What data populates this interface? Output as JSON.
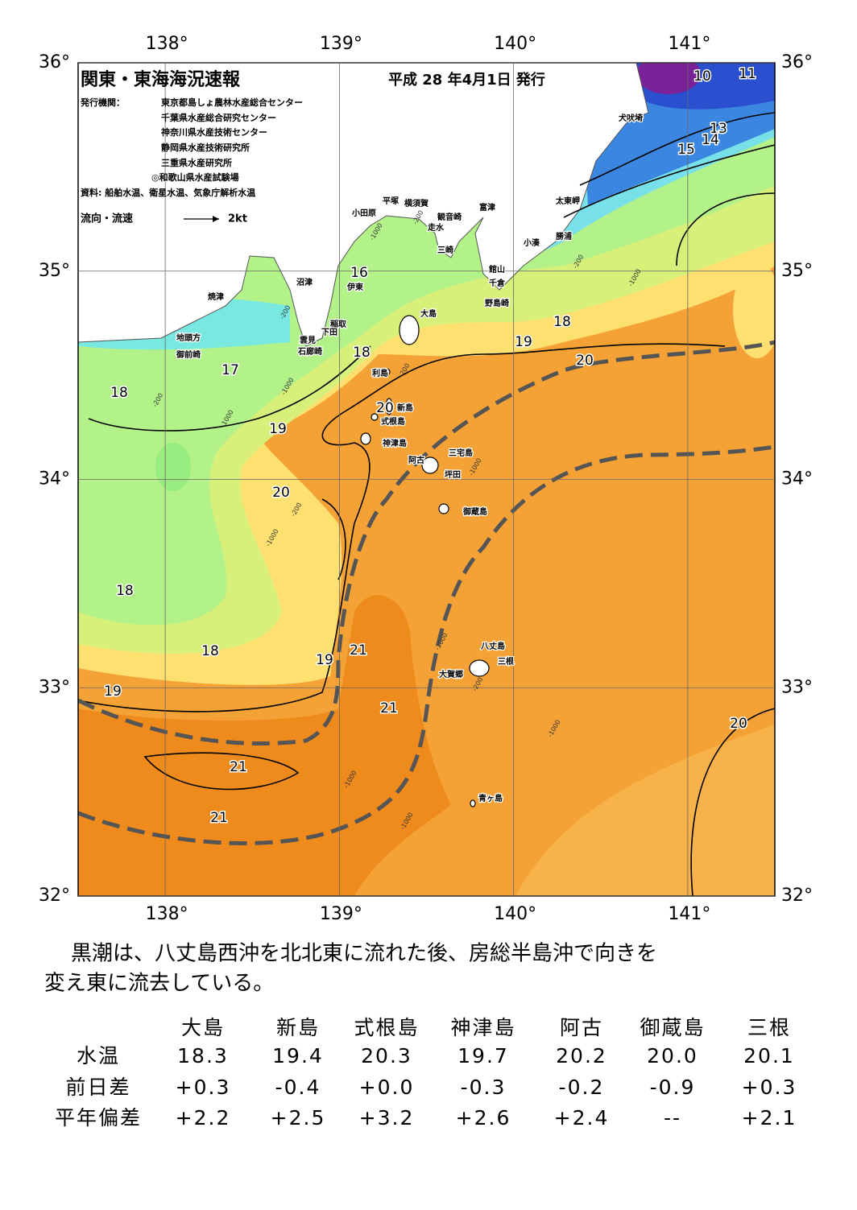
{
  "header": {
    "title": "関東・東海海況速報",
    "date": "平成 28 年4月1日 発行",
    "publisher_label": "発行機関：",
    "publishers": [
      "東京都島しょ農林水産総合センター",
      "千葉県水産総合研究センター",
      "神奈川県水産技術センター",
      "静岡県水産技術研究所",
      "三重県水産研究所",
      "◎和歌山県水産試験場"
    ],
    "source": "資料: 船舶水温、衛星水温、気象庁解析水温",
    "legend_label": "流向・流速",
    "legend_scale": "2kt"
  },
  "map": {
    "lon_ticks": [
      {
        "value": 138,
        "label": "138°"
      },
      {
        "value": 139,
        "label": "139°"
      },
      {
        "value": 140,
        "label": "140°"
      },
      {
        "value": 141,
        "label": "141°"
      }
    ],
    "lat_ticks": [
      {
        "value": 36,
        "label": "36°"
      },
      {
        "value": 35,
        "label": "35°"
      },
      {
        "value": 34,
        "label": "34°"
      },
      {
        "value": 33,
        "label": "33°"
      },
      {
        "value": 32,
        "label": "32°"
      }
    ],
    "place_names": [
      "犬吠埼",
      "太東岬",
      "勝浦",
      "小湊",
      "富津",
      "横須賀",
      "観音崎",
      "平塚",
      "小田原",
      "走水",
      "三崎",
      "館山",
      "千倉",
      "野島崎",
      "沼津",
      "伊東",
      "焼津",
      "稲取",
      "下田",
      "雲見",
      "石廊崎",
      "地頭方",
      "御前崎",
      "大島",
      "利島",
      "新島",
      "式根島",
      "神津島",
      "三宅島",
      "阿古",
      "坪田",
      "御蔵島",
      "八丈島",
      "三根",
      "大賀郷",
      "青ヶ島"
    ],
    "contour_labels": [
      10,
      11,
      13,
      14,
      15,
      16,
      18,
      19,
      20,
      18,
      17,
      18,
      20,
      19,
      20,
      18,
      18,
      19,
      21,
      19,
      21,
      20,
      21,
      21
    ],
    "depth_labels": [
      "-1000",
      "-200",
      "-200",
      "-200",
      "-1000",
      "-1000",
      "-200",
      "-1000",
      "-200",
      "-1000",
      "-200",
      "-1000",
      "-1000",
      "-200",
      "-1000",
      "-1000",
      "-1000"
    ]
  },
  "description": [
    "黒潮は、八丈島西沖を北北東に流れた後、房総半島沖で向きを",
    "変え東に流去している。"
  ],
  "table": {
    "columns": [
      "大島",
      "新島",
      "式根島",
      "神津島",
      "阿古",
      "御蔵島",
      "三根"
    ],
    "rows": [
      {
        "label": "水温",
        "values": [
          "18.3",
          "19.4",
          "20.3",
          "19.7",
          "20.2",
          "20.0",
          "20.1"
        ]
      },
      {
        "label": "前日差",
        "values": [
          "+0.3",
          "-0.4",
          "+0.0",
          "-0.3",
          "-0.2",
          "-0.9",
          "+0.3"
        ]
      },
      {
        "label": "平年偏差",
        "values": [
          "+2.2",
          "+2.5",
          "+3.2",
          "+2.6",
          "+2.4",
          "--",
          "+2.1"
        ]
      }
    ]
  }
}
